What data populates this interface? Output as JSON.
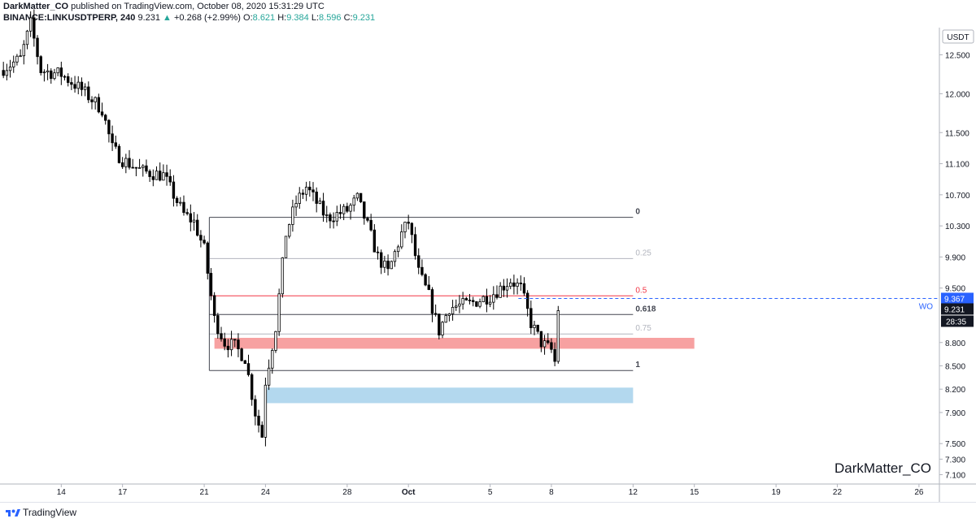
{
  "header": {
    "author": "DarkMatter_CO",
    "published_text": "published on TradingView.com, October 08, 2020 15:31:29 UTC",
    "symbol": "BINANCE:LINKUSDTPERP, 240",
    "last": "9.231",
    "change": "+0.268 (+2.99%)",
    "o_label": "O:",
    "o_value": "8.621",
    "h_label": "H:",
    "h_value": "9.384",
    "l_label": "L:",
    "l_value": "8.596",
    "c_label": "C:",
    "c_value": "9.231"
  },
  "footer": {
    "brand": "TradingView",
    "icon": "tradingview-logo-icon"
  },
  "watermark": "DarkMatter_CO",
  "colors": {
    "up": "#26a69a",
    "candle_outline": "#000000",
    "fib_dark": "#434651",
    "fib_light": "#b2b5be",
    "fib_mid": "#f23645",
    "red_zone": "#f7a1a1",
    "blue_zone": "#b3d8ee",
    "dashed_level": "#2962ff",
    "label_box": "#131722"
  },
  "chart_data": {
    "type": "candlestick",
    "interval": "240",
    "y_unit": "USDT",
    "ylim": [
      6.98,
      12.85
    ],
    "y_ticks": [
      12.5,
      12.0,
      11.5,
      11.1,
      10.7,
      10.3,
      9.9,
      9.5,
      8.8,
      8.5,
      8.2,
      7.9,
      7.5,
      7.3,
      7.1
    ],
    "y_tick_labels": [
      "12.500",
      "12.000",
      "11.500",
      "11.100",
      "10.700",
      "10.300",
      "9.900",
      "9.500",
      "8.800",
      "8.500",
      "8.200",
      "7.900",
      "7.500",
      "7.300",
      "7.100"
    ],
    "x_ticks": [
      "14",
      "17",
      "21",
      "24",
      "28",
      "Oct",
      "5",
      "8",
      "12",
      "15",
      "19",
      "22",
      "26"
    ],
    "x_tick_dates": [
      "2020-09-14",
      "2020-09-17",
      "2020-09-21",
      "2020-09-24",
      "2020-09-28",
      "2020-10-01",
      "2020-10-05",
      "2020-10-08",
      "2020-10-12",
      "2020-10-15",
      "2020-10-19",
      "2020-10-22",
      "2020-10-26"
    ],
    "xlim": [
      "2020-09-11",
      "2020-10-27"
    ],
    "price_path": [
      [
        "2020-09-11",
        12.3
      ],
      [
        "2020-09-12",
        12.45
      ],
      [
        "2020-09-12 12:00",
        12.9
      ],
      [
        "2020-09-13",
        12.3
      ],
      [
        "2020-09-14",
        12.25
      ],
      [
        "2020-09-15",
        12.05
      ],
      [
        "2020-09-16",
        11.8
      ],
      [
        "2020-09-16 12:00",
        11.3
      ],
      [
        "2020-09-17",
        11.15
      ],
      [
        "2020-09-18",
        11.0
      ],
      [
        "2020-09-19",
        10.95
      ],
      [
        "2020-09-20",
        10.45
      ],
      [
        "2020-09-20 12:00",
        10.35
      ],
      [
        "2020-09-21",
        10.0
      ],
      [
        "2020-09-21 12:00",
        9.1
      ],
      [
        "2020-09-22",
        8.8
      ],
      [
        "2020-09-22 12:00",
        8.75
      ],
      [
        "2020-09-23",
        8.6
      ],
      [
        "2020-09-23 12:00",
        7.9
      ],
      [
        "2020-09-23 20:00",
        7.6
      ],
      [
        "2020-09-24",
        8.3
      ],
      [
        "2020-09-24 12:00",
        9.0
      ],
      [
        "2020-09-25",
        10.2
      ],
      [
        "2020-09-25 12:00",
        10.6
      ],
      [
        "2020-09-26",
        10.8
      ],
      [
        "2020-09-27",
        10.4
      ],
      [
        "2020-09-28",
        10.5
      ],
      [
        "2020-09-28 12:00",
        10.65
      ],
      [
        "2020-09-29",
        10.3
      ],
      [
        "2020-09-29 12:00",
        9.9
      ],
      [
        "2020-09-30",
        9.7
      ],
      [
        "2020-09-30 16:00",
        10.2
      ],
      [
        "2020-10-01",
        10.35
      ],
      [
        "2020-10-01 12:00",
        9.7
      ],
      [
        "2020-10-02",
        9.4
      ],
      [
        "2020-10-02 12:00",
        8.95
      ],
      [
        "2020-10-03",
        9.25
      ],
      [
        "2020-10-04",
        9.3
      ],
      [
        "2020-10-05",
        9.4
      ],
      [
        "2020-10-06",
        9.6
      ],
      [
        "2020-10-06 12:00",
        9.5
      ],
      [
        "2020-10-07",
        9.05
      ],
      [
        "2020-10-07 12:00",
        8.8
      ],
      [
        "2020-10-08",
        8.7
      ],
      [
        "2020-10-08 04:00",
        8.55
      ],
      [
        "2020-10-08 08:00",
        9.231
      ]
    ],
    "annotations": {
      "fib_levels": [
        {
          "label": "0",
          "price": 10.41,
          "style": "dark"
        },
        {
          "label": "0.25",
          "price": 9.88,
          "style": "light"
        },
        {
          "label": "0.5",
          "price": 9.4,
          "style": "mid"
        },
        {
          "label": "0.618",
          "price": 9.16,
          "style": "dark"
        },
        {
          "label": "0.75",
          "price": 8.91,
          "style": "light"
        },
        {
          "label": "1",
          "price": 8.44,
          "style": "dark"
        }
      ],
      "fib_start": "2020-09-21 06:00",
      "fib_end": "2020-10-12",
      "red_zone": {
        "from": "2020-09-21 12:00",
        "to": "2020-10-15",
        "low": 8.72,
        "high": 8.86
      },
      "blue_zone": {
        "from": "2020-09-24",
        "to": "2020-10-12",
        "low": 8.02,
        "high": 8.22
      },
      "dashed_level": {
        "price": 9.367,
        "label": "WO"
      },
      "price_labels": [
        "9.367",
        "9.231",
        "28:35"
      ]
    }
  }
}
